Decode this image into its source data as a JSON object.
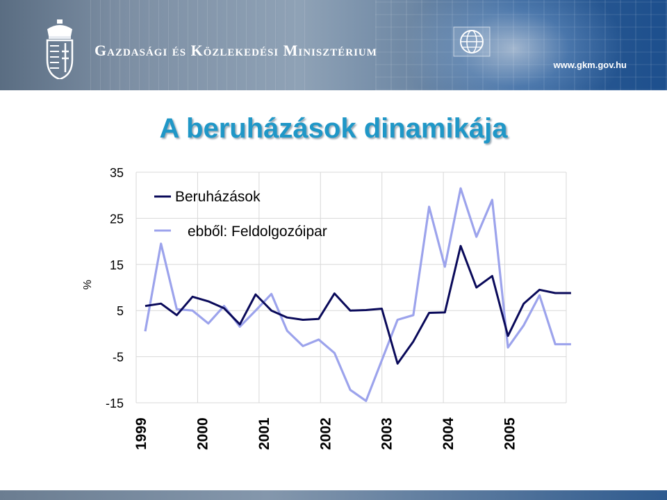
{
  "header": {
    "ministry_name": "Gazdasági és Közlekedési Minisztérium",
    "url": "www.gkm.gov.hu"
  },
  "title": "A beruházások dinamikája",
  "chart_data": {
    "type": "line",
    "title": "A beruházások dinamikája",
    "ylabel": "%",
    "xlabel": "",
    "ylim": [
      -15,
      35
    ],
    "yticks": [
      35,
      25,
      15,
      5,
      -5,
      -15
    ],
    "xticks": [
      "1999",
      "2000",
      "2001",
      "2002",
      "2003",
      "2004",
      "2005"
    ],
    "grid": true,
    "legend_position": "top-left",
    "x": [
      "1999 Q1",
      "1999 Q2",
      "1999 Q3",
      "1999 Q4",
      "2000 Q1",
      "2000 Q2",
      "2000 Q3",
      "2000 Q4",
      "2001 Q1",
      "2001 Q2",
      "2001 Q3",
      "2001 Q4",
      "2002 Q1",
      "2002 Q2",
      "2002 Q3",
      "2002 Q4",
      "2003 Q1",
      "2003 Q2",
      "2003 Q3",
      "2003 Q4",
      "2004 Q1",
      "2004 Q2",
      "2004 Q3",
      "2004 Q4",
      "2005 Q1",
      "2005 Q2",
      "2005 Q3",
      "2005 Q4"
    ],
    "series": [
      {
        "name": "Beruházások",
        "color": "#0a0a5a",
        "values": [
          6.0,
          6.5,
          4.0,
          8.0,
          7.0,
          5.5,
          2.0,
          8.5,
          5.0,
          3.5,
          3.0,
          3.2,
          8.7,
          5.0,
          5.1,
          5.4,
          -6.5,
          -1.7,
          4.5,
          4.6,
          19.0,
          10.0,
          12.5,
          -0.5,
          6.5,
          9.5,
          8.8,
          8.8
        ]
      },
      {
        "name": "ebből: Feldolgozóipar",
        "color": "#9ca3ec",
        "values": [
          0.5,
          19.5,
          5.3,
          5.0,
          2.2,
          6.0,
          1.5,
          5.0,
          8.6,
          0.6,
          -2.7,
          -1.3,
          -4.2,
          -12.2,
          -14.6,
          -5.8,
          3.0,
          4.0,
          27.5,
          14.5,
          31.5,
          21.0,
          29.0,
          -3.0,
          1.8,
          8.3,
          -2.3,
          -2.3
        ]
      }
    ]
  }
}
